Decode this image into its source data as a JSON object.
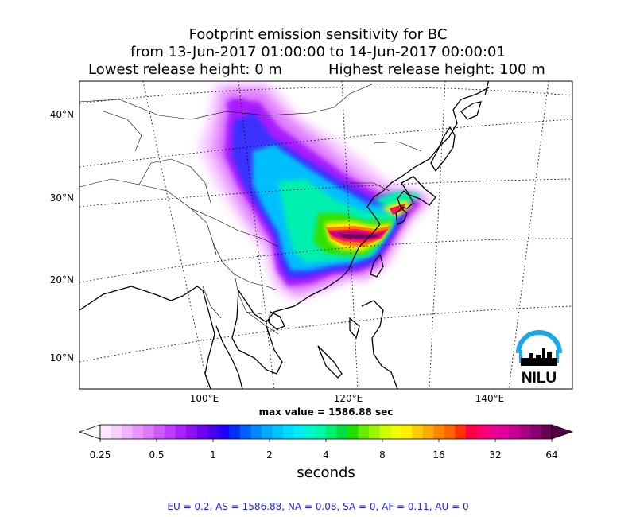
{
  "chart_data": {
    "type": "heatmap",
    "title_lines": [
      "Footprint emission sensitivity for BC",
      "from 13-Jun-2017 01:00:00 to 14-Jun-2017 00:00:01"
    ],
    "release_low": "Lowest release height: 0 m",
    "release_high": "Highest release height: 100 m",
    "lat_ticks": [
      "40°N",
      "30°N",
      "20°N",
      "10°N"
    ],
    "lon_ticks": [
      "100°E",
      "120°E",
      "140°E"
    ],
    "max_value_text": "max value = 1586.88 sec",
    "colorbar": {
      "ticks": [
        "0.25",
        "0.5",
        "1",
        "2",
        "4",
        "8",
        "16",
        "32",
        "64"
      ],
      "label": "seconds",
      "colors": [
        "#fde8ff",
        "#f8d0ff",
        "#f0b4ff",
        "#e896ff",
        "#de78ff",
        "#d05aff",
        "#c03cff",
        "#aa20ff",
        "#9010f5",
        "#7000f0",
        "#4a00ee",
        "#2200ff",
        "#0030ff",
        "#0060ff",
        "#0088ff",
        "#00aaff",
        "#00c4ff",
        "#00dcff",
        "#00eef0",
        "#00f6d0",
        "#00f8a8",
        "#00f070",
        "#00e040",
        "#22e000",
        "#66ee00",
        "#99f500",
        "#ccff00",
        "#eeff00",
        "#ffee00",
        "#ffcc00",
        "#ffaa00",
        "#ff8800",
        "#ff6600",
        "#ff3300",
        "#ff0044",
        "#ff0070",
        "#f00090",
        "#e000a0",
        "#c80090",
        "#a80080",
        "#880070",
        "#660050"
      ],
      "under_color": "#ffffff",
      "over_color": "#550044"
    },
    "logo_text": "NILU",
    "footer": "EU = 0.2,  AS = 1586.88,  NA = 0.08,  SA = 0,  AF = 0.11,  AU = 0"
  }
}
